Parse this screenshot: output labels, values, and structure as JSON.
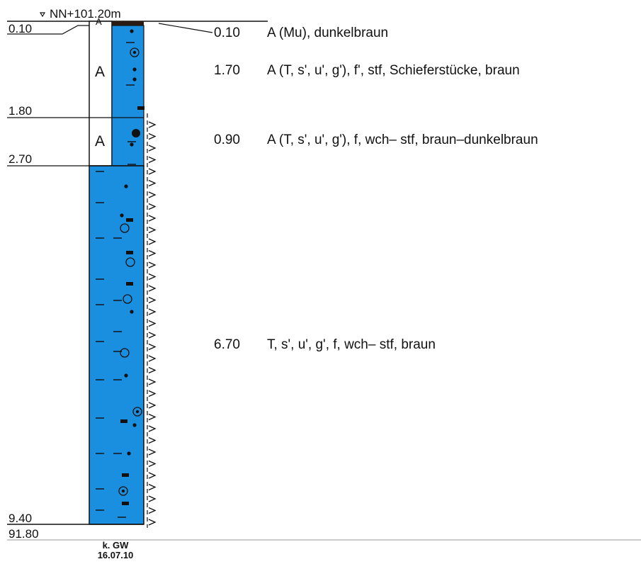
{
  "header": {
    "elevation_label": "NN+101.20m"
  },
  "layers": [
    {
      "depth": "0.10",
      "thickness": "0.10",
      "symbol": "A",
      "description": "A (Mu), dunkelbraun"
    },
    {
      "depth": "1.80",
      "thickness": "1.70",
      "symbol": "A",
      "description": "A (T, s', u', g'), f', stf, Schieferstücke, braun"
    },
    {
      "depth": "2.70",
      "thickness": "0.90",
      "symbol": "A",
      "description": "A (T, s', u', g'), f, wch– stf, braun–dunkelbraun"
    },
    {
      "depth": "9.40",
      "thickness": "6.70",
      "symbol": "",
      "description": "T, s', u', g', f, wch– stf, braun"
    }
  ],
  "bottom": {
    "elevation": "91.80"
  },
  "groundwater": {
    "line1": "k. GW",
    "line2": "16.07.10"
  },
  "colors": {
    "clay_fill": "#1a8fe0",
    "topsoil_fill": "#2a1a14",
    "line": "#111111"
  }
}
